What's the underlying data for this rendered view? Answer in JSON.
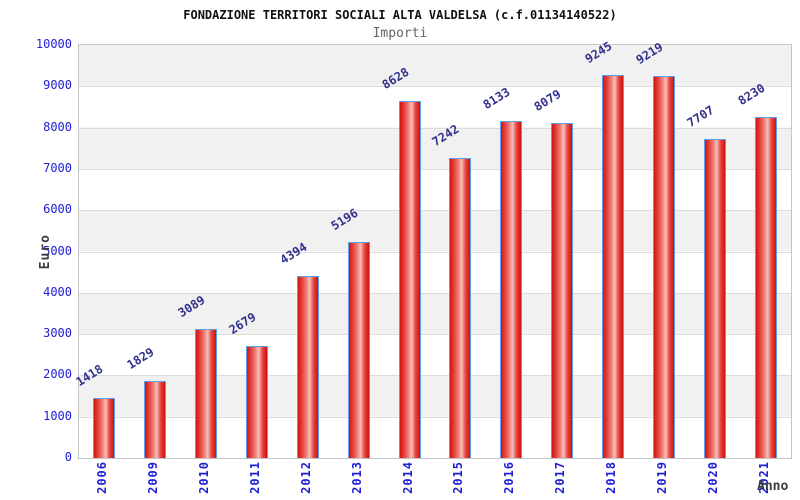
{
  "chart_data": {
    "type": "bar",
    "title": "FONDAZIONE TERRITORI SOCIALI ALTA VALDELSA (c.f.01134140522)",
    "subtitle": "Importi",
    "xlabel": "Anno",
    "ylabel": "Euro",
    "categories": [
      "2006",
      "2009",
      "2010",
      "2011",
      "2012",
      "2013",
      "2014",
      "2015",
      "2016",
      "2017",
      "2018",
      "2019",
      "2020",
      "2021"
    ],
    "values": [
      1418,
      1829,
      3089,
      2679,
      4394,
      5196,
      8628,
      7242,
      8133,
      8079,
      9245,
      9219,
      7707,
      8230
    ],
    "ylim": [
      0,
      10000
    ],
    "yticks": [
      0,
      1000,
      2000,
      3000,
      4000,
      5000,
      6000,
      7000,
      8000,
      9000,
      10000
    ],
    "grid": true,
    "legend_position": "none",
    "colors": {
      "bar_fill_main": "#d61414",
      "bar_fill_light": "#f6c0ba",
      "bar_border": "#58a0e8",
      "value_label": "#31318c",
      "axis_tick_text": "#2020d6",
      "band_gray": "#f1f1f1",
      "band_white": "#ffffff",
      "gridline": "#dcdcdc",
      "title_text": "#111111",
      "subtitle_text": "#666666",
      "axis_title_text": "#3c3c3c"
    }
  }
}
